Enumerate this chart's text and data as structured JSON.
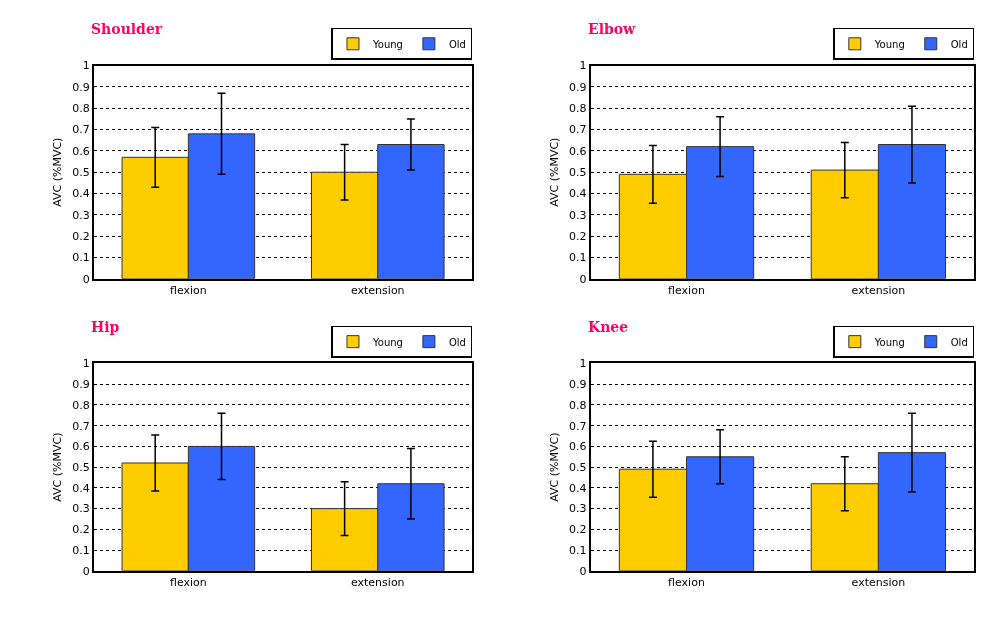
{
  "chart_data": [
    {
      "type": "bar",
      "title": "Shoulder",
      "ylabel": "AVC (%MVC)",
      "categories": [
        "flexion",
        "extension"
      ],
      "ylim": [
        0,
        1
      ],
      "yticks": [
        0,
        0.1,
        0.2,
        0.3,
        0.4,
        0.5,
        0.6,
        0.7,
        0.8,
        0.9,
        1
      ],
      "grid": "y",
      "legend": "top right",
      "series": [
        {
          "name": "Young",
          "color": "#ffcc00",
          "values": [
            0.57,
            0.5
          ],
          "errors": [
            0.14,
            0.13
          ]
        },
        {
          "name": "Old",
          "color": "#3366ff",
          "values": [
            0.68,
            0.63
          ],
          "errors": [
            0.19,
            0.12
          ]
        }
      ]
    },
    {
      "type": "bar",
      "title": "Elbow",
      "ylabel": "AVC (%MVC)",
      "categories": [
        "flexion",
        "extension"
      ],
      "ylim": [
        0,
        1
      ],
      "yticks": [
        0,
        0.1,
        0.2,
        0.3,
        0.4,
        0.5,
        0.6,
        0.7,
        0.8,
        0.9,
        1
      ],
      "grid": "y",
      "legend": "top right",
      "series": [
        {
          "name": "Young",
          "color": "#ffcc00",
          "values": [
            0.49,
            0.51
          ],
          "errors": [
            0.135,
            0.13
          ]
        },
        {
          "name": "Old",
          "color": "#3366ff",
          "values": [
            0.62,
            0.63
          ],
          "errors": [
            0.14,
            0.18
          ]
        }
      ]
    },
    {
      "type": "bar",
      "title": "Hip",
      "ylabel": "AVC (%MVC)",
      "categories": [
        "flexion",
        "extension"
      ],
      "ylim": [
        0,
        1
      ],
      "yticks": [
        0,
        0.1,
        0.2,
        0.3,
        0.4,
        0.5,
        0.6,
        0.7,
        0.8,
        0.9,
        1
      ],
      "grid": "y",
      "legend": "top right",
      "series": [
        {
          "name": "Young",
          "color": "#ffcc00",
          "values": [
            0.52,
            0.3
          ],
          "errors": [
            0.135,
            0.13
          ]
        },
        {
          "name": "Old",
          "color": "#3366ff",
          "values": [
            0.6,
            0.42
          ],
          "errors": [
            0.16,
            0.17
          ]
        }
      ]
    },
    {
      "type": "bar",
      "title": "Knee",
      "ylabel": "AVC (%MVC)",
      "categories": [
        "flexion",
        "extension"
      ],
      "ylim": [
        0,
        1
      ],
      "yticks": [
        0,
        0.1,
        0.2,
        0.3,
        0.4,
        0.5,
        0.6,
        0.7,
        0.8,
        0.9,
        1
      ],
      "grid": "y",
      "legend": "top right",
      "series": [
        {
          "name": "Young",
          "color": "#ffcc00",
          "values": [
            0.49,
            0.42
          ],
          "errors": [
            0.135,
            0.13
          ]
        },
        {
          "name": "Old",
          "color": "#3366ff",
          "values": [
            0.55,
            0.57
          ],
          "errors": [
            0.13,
            0.19
          ]
        }
      ]
    }
  ]
}
